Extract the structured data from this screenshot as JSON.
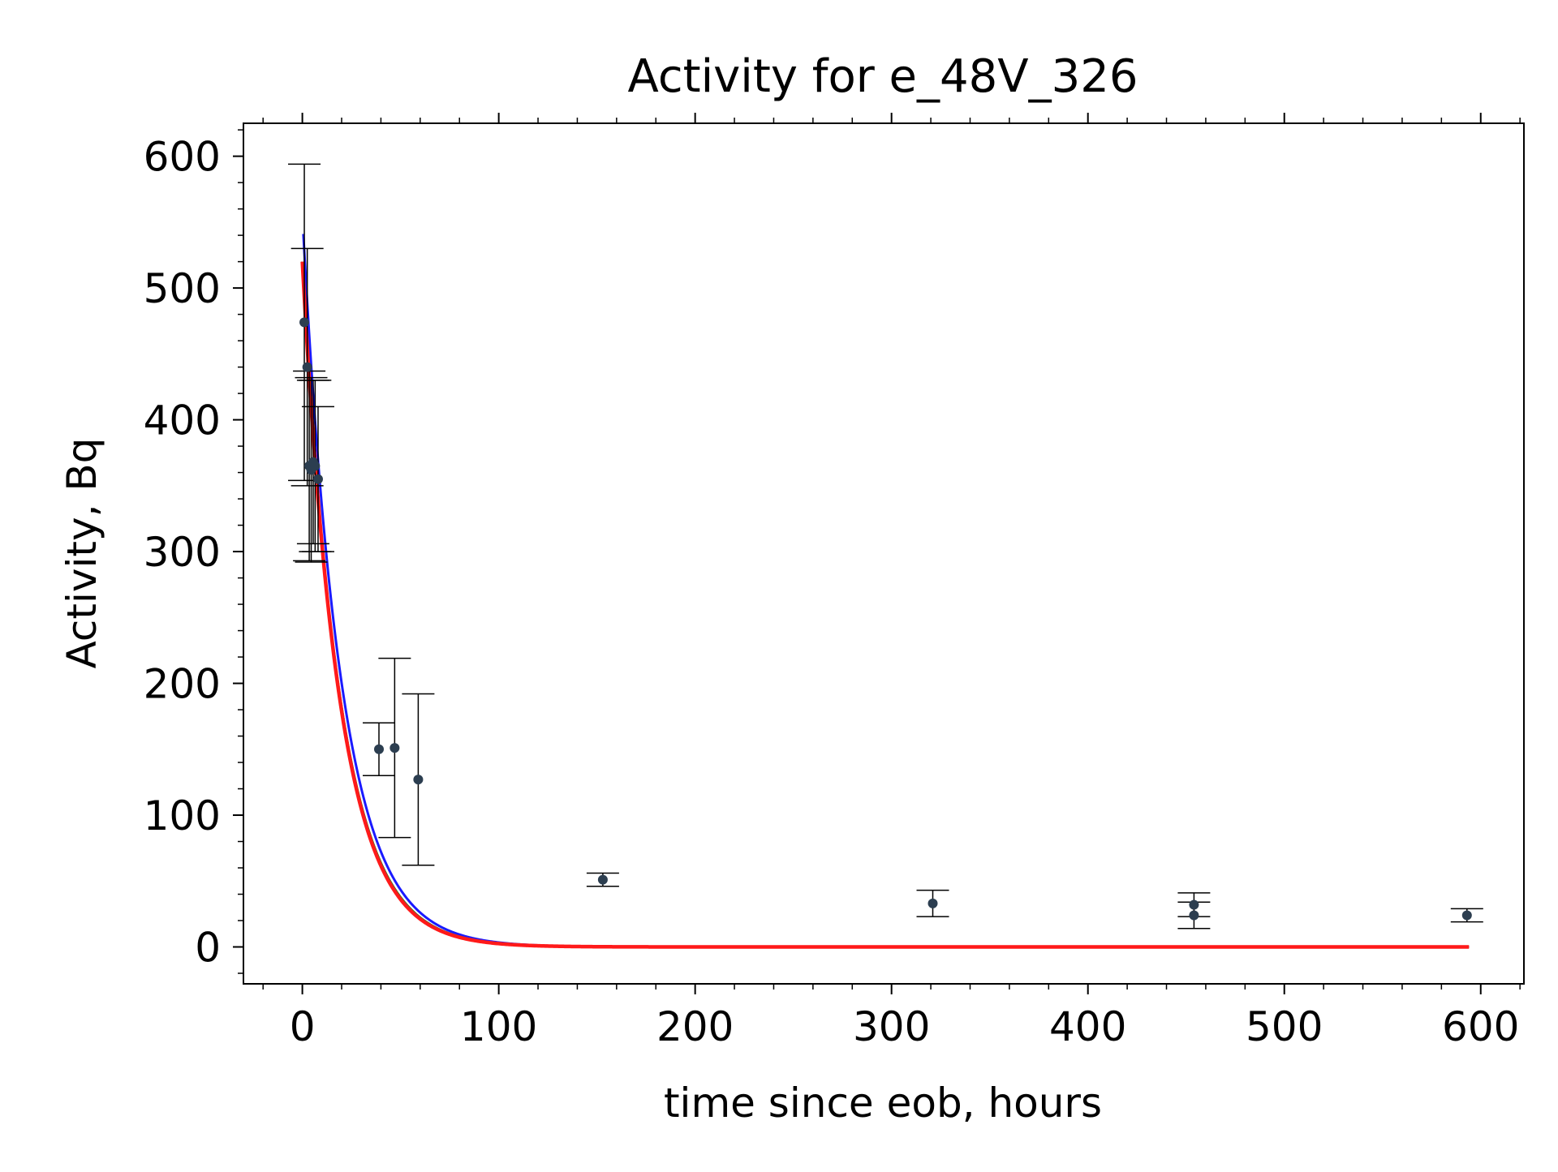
{
  "chart_data": {
    "type": "scatter",
    "title": "Activity for e_48V_326",
    "xlabel": "time since eob, hours",
    "ylabel": "Activity, Bq",
    "xlim": [
      -30,
      622
    ],
    "ylim": [
      -28,
      625
    ],
    "xticks": [
      0,
      100,
      200,
      300,
      400,
      500,
      600
    ],
    "yticks": [
      0,
      100,
      200,
      300,
      400,
      500,
      600
    ],
    "grid": false,
    "colors": {
      "points": "#2c3e50",
      "errorbars": "#000000",
      "fit_blue": "#1a1aff",
      "fit_green": "#1a7a1a",
      "fit_red": "#ff1a1a"
    },
    "points": [
      {
        "x": 1.0,
        "y": 474,
        "err": 120
      },
      {
        "x": 2.5,
        "y": 440,
        "err": 90
      },
      {
        "x": 3.5,
        "y": 365,
        "err": 72
      },
      {
        "x": 4.5,
        "y": 362,
        "err": 70
      },
      {
        "x": 5.5,
        "y": 368,
        "err": 62
      },
      {
        "x": 6.5,
        "y": 365,
        "err": 65
      },
      {
        "x": 8.0,
        "y": 355,
        "err": 55
      },
      {
        "x": 39,
        "y": 150,
        "err": 20
      },
      {
        "x": 47,
        "y": 151,
        "err": 68
      },
      {
        "x": 59,
        "y": 127,
        "err": 65
      },
      {
        "x": 153,
        "y": 51,
        "err": 5
      },
      {
        "x": 321,
        "y": 33,
        "err": 10
      },
      {
        "x": 454,
        "y": 32,
        "err": 9
      },
      {
        "x": 454,
        "y": 24,
        "err": 10
      },
      {
        "x": 593,
        "y": 24,
        "err": 5
      }
    ],
    "series": [
      {
        "A0": 555,
        "halflife": 13.6,
        "x_start": 0.5,
        "x_end": 594
      },
      {
        "A0": 520,
        "halflife": 13.2,
        "x_start": 0,
        "x_end": 594
      },
      {
        "A0": 520,
        "halflife": 13.0,
        "x_start": 0,
        "x_end": 594
      }
    ]
  }
}
